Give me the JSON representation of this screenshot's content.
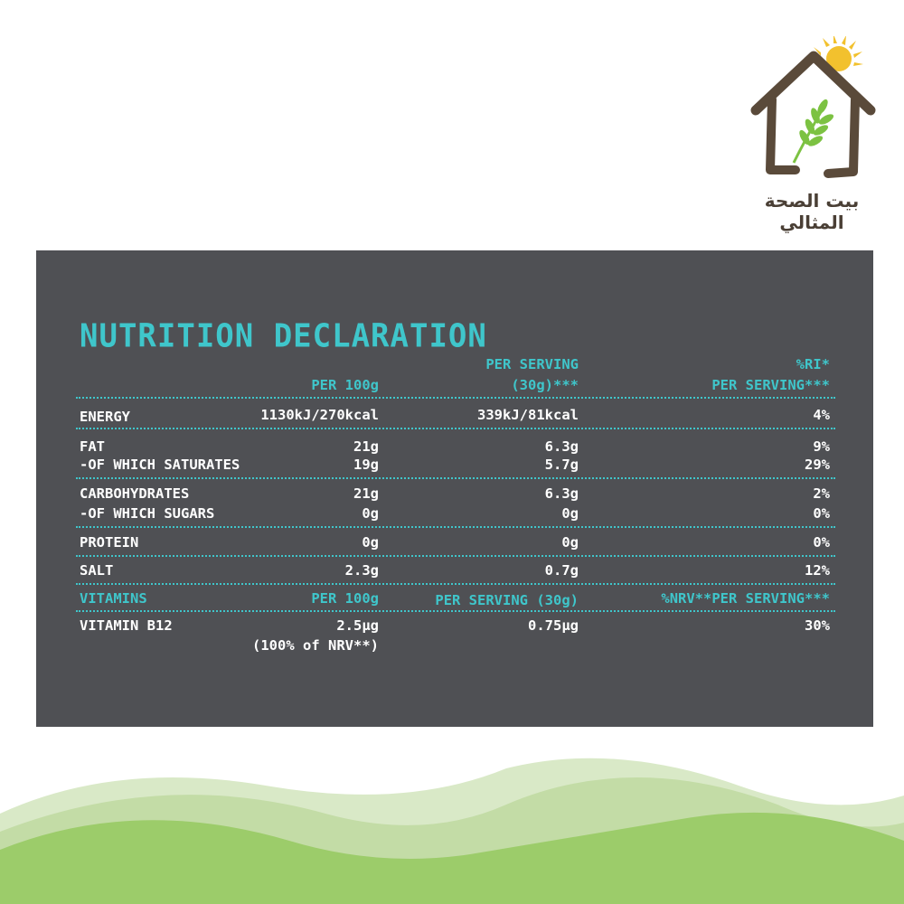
{
  "logo": {
    "text": "بيت الصحة المثالي",
    "colors": {
      "house": "#5a4a3a",
      "sun": "#f2c12e",
      "wheat": "#7cc242"
    }
  },
  "nutrition": {
    "title": "NUTRITION DECLARATION",
    "headers": {
      "per100": "PER 100g",
      "serving_line1": "PER SERVING",
      "serving_line2": "(30g)***",
      "ri_line1": "%RI*",
      "ri_line2": "PER SERVING***"
    },
    "rows": [
      {
        "label": "ENERGY",
        "per100": "1130kJ/270kcal",
        "serving": "339kJ/81kcal",
        "ri": "4%"
      },
      {
        "label": "FAT",
        "per100": "21g",
        "serving": "6.3g",
        "ri": "9%"
      },
      {
        "label": "-OF WHICH SATURATES",
        "per100": "19g",
        "serving": "5.7g",
        "ri": "29%"
      },
      {
        "label": "CARBOHYDRATES",
        "per100": "21g",
        "serving": "6.3g",
        "ri": "2%"
      },
      {
        "label": "-OF WHICH SUGARS",
        "per100": "0g",
        "serving": "0g",
        "ri": "0%"
      },
      {
        "label": "PROTEIN",
        "per100": "0g",
        "serving": "0g",
        "ri": "0%"
      },
      {
        "label": "SALT",
        "per100": "2.3g",
        "serving": "0.7g",
        "ri": "12%"
      }
    ],
    "vitamins_header": {
      "label": "VITAMINS",
      "per100": "PER 100g",
      "serving": "PER SERVING (30g)",
      "nrv": "%NRV**PER SERVING***"
    },
    "vitamin_row": {
      "label": "VITAMIN B12",
      "per100": "2.5µg",
      "per100_note": "(100% of NRV**)",
      "serving": "0.75µg",
      "nrv": "30%"
    },
    "colors": {
      "panel": "#4f5054",
      "accent": "#3fc6cb",
      "text": "#ffffff"
    }
  },
  "decor": {
    "wave_colors": [
      "#d9e9c7",
      "#c3dca6",
      "#9ccc6a"
    ]
  }
}
